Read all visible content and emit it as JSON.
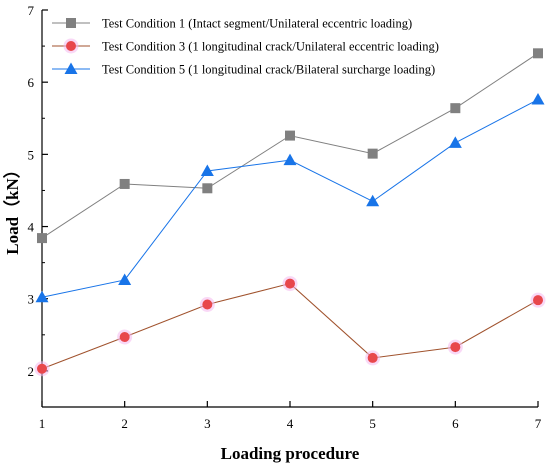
{
  "chart_data": {
    "type": "line",
    "title": "",
    "xlabel": "Loading procedure",
    "ylabel": "Load（kN）",
    "x": [
      1,
      2,
      3,
      4,
      5,
      6,
      7
    ],
    "xlim": [
      1,
      7
    ],
    "ylim": [
      1.5,
      7
    ],
    "xticks": [
      "1",
      "2",
      "3",
      "4",
      "5",
      "6",
      "7"
    ],
    "yticks": [
      "2",
      "3",
      "4",
      "5",
      "6",
      "7"
    ],
    "grid": false,
    "legend_position": "top-left",
    "series": [
      {
        "name": "Test Condition 1 (Intact segment/Unilateral eccentric loading)",
        "marker": "square",
        "color": "#808080",
        "values": [
          3.84,
          4.59,
          4.53,
          5.26,
          5.01,
          5.64,
          6.4
        ]
      },
      {
        "name": "Test Condition 3 (1 longitudinal crack/Unilateral eccentric loading)",
        "marker": "circle",
        "color": "#E8474C",
        "line_color": "#A0522D",
        "values": [
          2.03,
          2.47,
          2.92,
          3.21,
          2.18,
          2.33,
          2.98
        ]
      },
      {
        "name": "Test Condition 5  (1 longitudinal crack/Bilateral surcharge loading)",
        "marker": "triangle",
        "color": "#1874E8",
        "values": [
          3.02,
          3.26,
          4.77,
          4.92,
          4.35,
          5.16,
          5.76
        ]
      }
    ]
  }
}
